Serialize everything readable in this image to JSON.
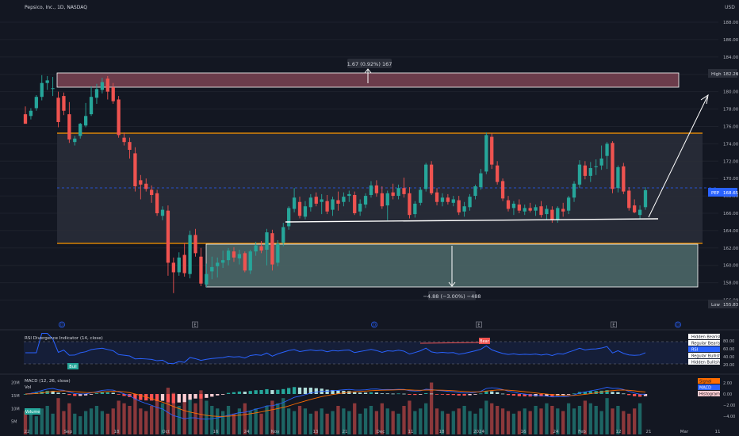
{
  "header": {
    "title": "Pepsico, Inc., 1D, NASDAQ",
    "currency": "USD"
  },
  "colors": {
    "background": "#131722",
    "up": "#26a69a",
    "down": "#ef5350",
    "resistance_band": "#8a4a5a",
    "range_band": "#2a2e39",
    "support_band": "#4f6b6b",
    "band_border": "#ff9800",
    "rsi_line": "#2962ff",
    "macd_line": "#2962ff",
    "signal_line": "#ff6d00"
  },
  "price_axis": {
    "labels": [
      "188.00",
      "186.00",
      "184.00",
      "182.00",
      "180.00",
      "178.00",
      "176.00",
      "174.00",
      "172.00",
      "170.00",
      "168.00",
      "166.00",
      "164.00",
      "162.00",
      "160.00",
      "158.00",
      "156.00"
    ],
    "high_label": "High",
    "high_value": "182.26",
    "low_label": "Low",
    "low_value": "155.83",
    "ticker": "PEP",
    "last_value": "168.65"
  },
  "time_axis": {
    "labels": [
      "22",
      "Sep",
      "18",
      "Oct",
      "16",
      "24",
      "Nov",
      "13",
      "21",
      "Dec",
      "11",
      "18",
      "2024",
      "16",
      "24",
      "Feb",
      "12",
      "21",
      "Mar",
      "11"
    ]
  },
  "annotations": {
    "target_up": "1.67 (0.92%) 167",
    "target_down": "−4.88 (−3.00%) −488"
  },
  "event_markers": [
    "D",
    "E",
    "D",
    "E",
    "E",
    "D"
  ],
  "rsi": {
    "title": "RSI Divergence Indicator (14, close)",
    "labels": [
      "80.00",
      "60.00",
      "40.00",
      "20.00"
    ],
    "legend": [
      "Hidden Bearish",
      "Regular Bearish",
      "RSI",
      "Regular Bullish",
      "Hidden Bullish"
    ],
    "tags": {
      "bull": "Bull",
      "bear": "Bear"
    }
  },
  "macd": {
    "title": "MACD (12, 26, close)",
    "labels": [
      "2.00",
      "0.00",
      "−2.00",
      "−4.00"
    ],
    "legend": [
      "Signal",
      "MACD",
      "Histogram"
    ]
  },
  "volume": {
    "title": "Vol",
    "labels": [
      "20M",
      "15M",
      "10M",
      "5M"
    ],
    "tag": "Volume"
  },
  "chart_data": {
    "type": "candlestick",
    "title": "Pepsico, Inc., 1D, NASDAQ",
    "ylim": [
      154,
      189
    ],
    "candles": [
      {
        "o": 177.4,
        "h": 178.3,
        "l": 176.4,
        "c": 176.3
      },
      {
        "o": 177.2,
        "h": 178.1,
        "l": 176.8,
        "c": 177.8
      },
      {
        "o": 178.1,
        "h": 179.6,
        "l": 177.8,
        "c": 179.4
      },
      {
        "o": 179.4,
        "h": 181.9,
        "l": 179.0,
        "c": 181.0
      },
      {
        "o": 181.0,
        "h": 181.8,
        "l": 180.2,
        "c": 181.3
      },
      {
        "o": 180.4,
        "h": 181.7,
        "l": 179.5,
        "c": 180.4
      },
      {
        "o": 179.3,
        "h": 180.0,
        "l": 175.9,
        "c": 176.5
      },
      {
        "o": 179.5,
        "h": 179.9,
        "l": 177.3,
        "c": 177.8
      },
      {
        "o": 177.4,
        "h": 178.8,
        "l": 174.1,
        "c": 174.5
      },
      {
        "o": 174.2,
        "h": 174.9,
        "l": 173.8,
        "c": 174.6
      },
      {
        "o": 174.9,
        "h": 176.4,
        "l": 174.6,
        "c": 176.3
      },
      {
        "o": 176.1,
        "h": 178.7,
        "l": 175.9,
        "c": 177.2
      },
      {
        "o": 177.4,
        "h": 180.6,
        "l": 177.2,
        "c": 179.4
      },
      {
        "o": 179.3,
        "h": 180.9,
        "l": 178.6,
        "c": 180.3
      },
      {
        "o": 180.2,
        "h": 181.6,
        "l": 179.8,
        "c": 181.1
      },
      {
        "o": 181.5,
        "h": 181.8,
        "l": 179.1,
        "c": 180.0
      },
      {
        "o": 180.5,
        "h": 181.0,
        "l": 178.6,
        "c": 178.9
      },
      {
        "o": 179.1,
        "h": 179.5,
        "l": 174.7,
        "c": 175.0
      },
      {
        "o": 174.7,
        "h": 175.3,
        "l": 173.8,
        "c": 174.2
      },
      {
        "o": 174.2,
        "h": 174.7,
        "l": 172.3,
        "c": 173.3
      },
      {
        "o": 172.9,
        "h": 173.6,
        "l": 168.5,
        "c": 169.1
      },
      {
        "o": 169.8,
        "h": 170.4,
        "l": 167.6,
        "c": 169.3
      },
      {
        "o": 169.4,
        "h": 170.0,
        "l": 168.5,
        "c": 168.8
      },
      {
        "o": 168.7,
        "h": 169.2,
        "l": 167.2,
        "c": 168.1
      },
      {
        "o": 168.3,
        "h": 168.7,
        "l": 165.7,
        "c": 166.0
      },
      {
        "o": 165.7,
        "h": 166.8,
        "l": 165.2,
        "c": 166.4
      },
      {
        "o": 166.3,
        "h": 166.9,
        "l": 158.8,
        "c": 160.3
      },
      {
        "o": 160.3,
        "h": 160.9,
        "l": 156.8,
        "c": 159.2
      },
      {
        "o": 159.2,
        "h": 161.5,
        "l": 158.8,
        "c": 160.9
      },
      {
        "o": 161.2,
        "h": 162.6,
        "l": 158.7,
        "c": 159.1
      },
      {
        "o": 159.0,
        "h": 164.0,
        "l": 158.5,
        "c": 163.5
      },
      {
        "o": 163.5,
        "h": 164.2,
        "l": 161.0,
        "c": 161.4
      },
      {
        "o": 161.0,
        "h": 162.0,
        "l": 157.6,
        "c": 157.9
      },
      {
        "o": 157.8,
        "h": 160.2,
        "l": 157.5,
        "c": 159.0
      },
      {
        "o": 159.3,
        "h": 161.0,
        "l": 158.4,
        "c": 159.8
      },
      {
        "o": 159.9,
        "h": 160.9,
        "l": 158.6,
        "c": 160.3
      },
      {
        "o": 160.3,
        "h": 161.7,
        "l": 159.7,
        "c": 160.6
      },
      {
        "o": 160.6,
        "h": 162.0,
        "l": 160.0,
        "c": 161.7
      },
      {
        "o": 161.6,
        "h": 162.1,
        "l": 160.4,
        "c": 160.9
      },
      {
        "o": 160.8,
        "h": 161.8,
        "l": 160.1,
        "c": 161.3
      },
      {
        "o": 161.4,
        "h": 161.6,
        "l": 159.2,
        "c": 159.4
      },
      {
        "o": 159.4,
        "h": 161.8,
        "l": 159.0,
        "c": 161.6
      },
      {
        "o": 161.6,
        "h": 162.7,
        "l": 161.1,
        "c": 162.3
      },
      {
        "o": 162.2,
        "h": 162.8,
        "l": 161.4,
        "c": 161.7
      },
      {
        "o": 161.8,
        "h": 164.2,
        "l": 160.0,
        "c": 163.8
      },
      {
        "o": 163.7,
        "h": 164.1,
        "l": 159.4,
        "c": 160.1
      },
      {
        "o": 160.3,
        "h": 162.9,
        "l": 159.9,
        "c": 162.5
      },
      {
        "o": 162.6,
        "h": 164.9,
        "l": 162.2,
        "c": 164.4
      },
      {
        "o": 164.5,
        "h": 166.8,
        "l": 164.1,
        "c": 166.6
      },
      {
        "o": 166.5,
        "h": 168.9,
        "l": 166.1,
        "c": 167.8
      },
      {
        "o": 167.3,
        "h": 167.9,
        "l": 165.4,
        "c": 165.7
      },
      {
        "o": 165.6,
        "h": 167.4,
        "l": 165.3,
        "c": 166.8
      },
      {
        "o": 166.7,
        "h": 168.2,
        "l": 166.2,
        "c": 167.8
      },
      {
        "o": 167.9,
        "h": 168.4,
        "l": 166.8,
        "c": 167.1
      },
      {
        "o": 167.3,
        "h": 168.2,
        "l": 165.9,
        "c": 167.6
      },
      {
        "o": 167.4,
        "h": 168.1,
        "l": 165.9,
        "c": 166.2
      },
      {
        "o": 166.4,
        "h": 167.9,
        "l": 165.7,
        "c": 167.6
      },
      {
        "o": 167.5,
        "h": 168.5,
        "l": 166.3,
        "c": 167.1
      },
      {
        "o": 167.3,
        "h": 168.4,
        "l": 166.8,
        "c": 167.9
      },
      {
        "o": 168.0,
        "h": 168.6,
        "l": 167.3,
        "c": 168.2
      },
      {
        "o": 168.1,
        "h": 168.5,
        "l": 165.8,
        "c": 166.0
      },
      {
        "o": 166.2,
        "h": 167.6,
        "l": 165.7,
        "c": 167.1
      },
      {
        "o": 167.0,
        "h": 168.3,
        "l": 166.6,
        "c": 168.0
      },
      {
        "o": 168.1,
        "h": 169.7,
        "l": 167.8,
        "c": 169.2
      },
      {
        "o": 169.2,
        "h": 169.8,
        "l": 167.9,
        "c": 168.3
      },
      {
        "o": 168.3,
        "h": 169.1,
        "l": 166.5,
        "c": 166.8
      },
      {
        "o": 166.9,
        "h": 168.6,
        "l": 165.2,
        "c": 168.3
      },
      {
        "o": 168.4,
        "h": 169.4,
        "l": 167.6,
        "c": 168.0
      },
      {
        "o": 168.0,
        "h": 169.3,
        "l": 167.6,
        "c": 168.9
      },
      {
        "o": 168.9,
        "h": 170.1,
        "l": 167.8,
        "c": 168.2
      },
      {
        "o": 168.3,
        "h": 169.0,
        "l": 165.4,
        "c": 165.8
      },
      {
        "o": 165.9,
        "h": 167.4,
        "l": 165.5,
        "c": 167.1
      },
      {
        "o": 167.2,
        "h": 169.0,
        "l": 166.9,
        "c": 168.7
      },
      {
        "o": 168.8,
        "h": 171.8,
        "l": 168.5,
        "c": 171.6
      },
      {
        "o": 171.6,
        "h": 172.0,
        "l": 168.1,
        "c": 168.3
      },
      {
        "o": 168.4,
        "h": 168.9,
        "l": 166.9,
        "c": 167.3
      },
      {
        "o": 167.3,
        "h": 168.3,
        "l": 166.8,
        "c": 167.8
      },
      {
        "o": 167.8,
        "h": 168.2,
        "l": 167.0,
        "c": 167.3
      },
      {
        "o": 167.2,
        "h": 168.0,
        "l": 166.8,
        "c": 167.6
      },
      {
        "o": 167.5,
        "h": 168.0,
        "l": 165.8,
        "c": 166.1
      },
      {
        "o": 166.2,
        "h": 167.3,
        "l": 165.6,
        "c": 166.8
      },
      {
        "o": 166.7,
        "h": 168.2,
        "l": 166.3,
        "c": 167.9
      },
      {
        "o": 168.0,
        "h": 169.3,
        "l": 167.6,
        "c": 169.1
      },
      {
        "o": 169.0,
        "h": 171.1,
        "l": 168.7,
        "c": 170.6
      },
      {
        "o": 170.8,
        "h": 175.3,
        "l": 170.5,
        "c": 175.0
      },
      {
        "o": 174.8,
        "h": 175.2,
        "l": 171.1,
        "c": 171.6
      },
      {
        "o": 171.5,
        "h": 172.0,
        "l": 169.3,
        "c": 169.6
      },
      {
        "o": 169.7,
        "h": 170.0,
        "l": 167.4,
        "c": 167.7
      },
      {
        "o": 167.5,
        "h": 168.0,
        "l": 166.2,
        "c": 166.5
      },
      {
        "o": 166.6,
        "h": 167.4,
        "l": 165.8,
        "c": 167.1
      },
      {
        "o": 167.0,
        "h": 167.6,
        "l": 166.0,
        "c": 166.3
      },
      {
        "o": 166.2,
        "h": 167.0,
        "l": 165.8,
        "c": 166.6
      },
      {
        "o": 166.6,
        "h": 167.2,
        "l": 166.1,
        "c": 166.3
      },
      {
        "o": 166.3,
        "h": 167.0,
        "l": 165.7,
        "c": 166.7
      },
      {
        "o": 166.8,
        "h": 167.4,
        "l": 165.5,
        "c": 165.8
      },
      {
        "o": 165.9,
        "h": 166.9,
        "l": 165.3,
        "c": 166.5
      },
      {
        "o": 166.4,
        "h": 166.8,
        "l": 164.9,
        "c": 165.2
      },
      {
        "o": 165.2,
        "h": 166.8,
        "l": 164.9,
        "c": 166.6
      },
      {
        "o": 166.5,
        "h": 167.2,
        "l": 165.6,
        "c": 166.2
      },
      {
        "o": 166.3,
        "h": 168.0,
        "l": 165.9,
        "c": 167.8
      },
      {
        "o": 167.8,
        "h": 169.7,
        "l": 167.3,
        "c": 169.4
      },
      {
        "o": 169.3,
        "h": 172.1,
        "l": 168.9,
        "c": 171.6
      },
      {
        "o": 171.5,
        "h": 172.0,
        "l": 169.9,
        "c": 170.3
      },
      {
        "o": 170.3,
        "h": 171.9,
        "l": 169.6,
        "c": 171.2
      },
      {
        "o": 171.3,
        "h": 172.2,
        "l": 170.4,
        "c": 171.4
      },
      {
        "o": 171.5,
        "h": 173.8,
        "l": 171.0,
        "c": 172.3
      },
      {
        "o": 172.6,
        "h": 174.2,
        "l": 171.1,
        "c": 174.0
      },
      {
        "o": 174.1,
        "h": 174.3,
        "l": 168.3,
        "c": 168.8
      },
      {
        "o": 168.9,
        "h": 171.5,
        "l": 168.4,
        "c": 171.3
      },
      {
        "o": 171.4,
        "h": 171.8,
        "l": 168.2,
        "c": 168.5
      },
      {
        "o": 168.6,
        "h": 169.0,
        "l": 166.3,
        "c": 166.6
      },
      {
        "o": 166.9,
        "h": 167.6,
        "l": 166.0,
        "c": 166.1
      },
      {
        "o": 165.8,
        "h": 166.9,
        "l": 165.4,
        "c": 166.4
      },
      {
        "o": 166.7,
        "h": 169.0,
        "l": 166.4,
        "c": 168.65
      }
    ],
    "levels": {
      "resistance_zone": [
        180.6,
        182.1
      ],
      "range_top": 175.6,
      "range_bottom": 162.9,
      "support_zone": [
        158.0,
        162.9
      ],
      "neckline": 165.7,
      "last_price": 168.65,
      "high": 182.26,
      "low": 155.83
    },
    "volume_values": [
      9,
      8,
      7,
      10,
      11,
      8,
      14,
      9,
      12,
      8,
      7,
      9,
      10,
      11,
      9,
      8,
      10,
      13,
      12,
      11,
      14,
      10,
      9,
      11,
      13,
      12,
      18,
      16,
      11,
      13,
      15,
      12,
      17,
      13,
      11,
      10,
      9,
      11,
      8,
      10,
      12,
      9,
      10,
      8,
      11,
      13,
      12,
      14,
      10,
      9,
      11,
      10,
      8,
      9,
      10,
      8,
      9,
      11,
      10,
      9,
      12,
      8,
      10,
      11,
      9,
      12,
      10,
      9,
      8,
      11,
      13,
      9,
      10,
      12,
      20,
      10,
      9,
      8,
      9,
      10,
      11,
      9,
      8,
      10,
      13,
      12,
      11,
      10,
      9,
      8,
      9,
      10,
      9,
      11,
      10,
      12,
      11,
      10,
      9,
      12,
      10,
      11,
      13,
      12,
      11,
      9,
      14,
      10,
      11,
      9,
      8,
      10,
      12
    ],
    "rsi_ylim": [
      0,
      100
    ],
    "macd_ylim": [
      -5,
      3
    ]
  }
}
